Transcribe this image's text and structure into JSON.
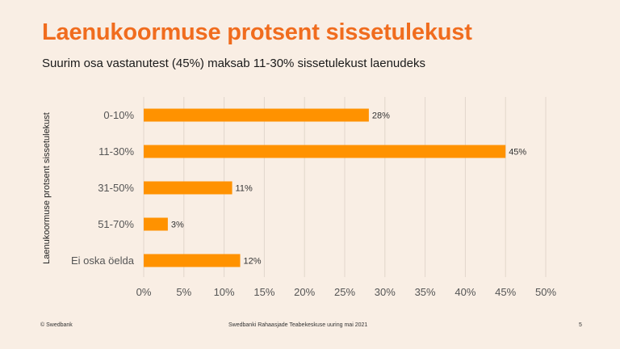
{
  "title": "Laenukoormuse protsent sissetulekust",
  "subtitle": "Suurim osa vastanutest (45%) maksab 11-30% sissetulekust laenudeks",
  "footer": {
    "left": "© Swedbank",
    "center": "Swedbanki Rahaasjade Teabekeskuse uuring mai 2021",
    "page": "5"
  },
  "colors": {
    "bar": "#FF9200",
    "title": "#F06C1E",
    "grid": "#E2D6CB",
    "background": "#F9EEE4"
  },
  "chart_data": {
    "type": "bar",
    "orientation": "horizontal",
    "title": "",
    "xlabel": "",
    "ylabel": "Laenukoormuse protsent sissetulekust",
    "categories": [
      "0-10%",
      "11-30%",
      "31-50%",
      "51-70%",
      "Ei oska öelda"
    ],
    "values": [
      28,
      45,
      11,
      3,
      12
    ],
    "data_labels": [
      "28%",
      "45%",
      "11%",
      "3%",
      "12%"
    ],
    "xlim": [
      0,
      50
    ],
    "xticks": [
      0,
      5,
      10,
      15,
      20,
      25,
      30,
      35,
      40,
      45,
      50
    ],
    "xtick_labels": [
      "0%",
      "5%",
      "10%",
      "15%",
      "20%",
      "25%",
      "30%",
      "35%",
      "40%",
      "45%",
      "50%"
    ],
    "grid": true,
    "legend": "none"
  }
}
